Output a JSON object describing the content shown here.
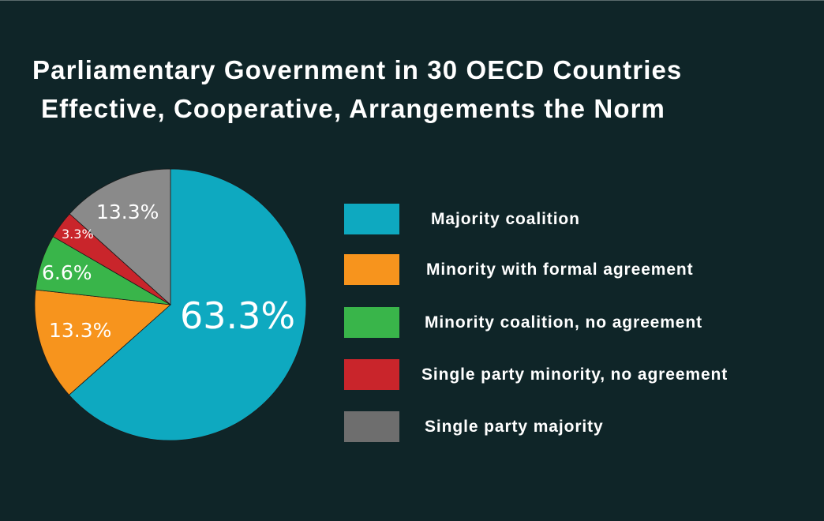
{
  "title": {
    "line1": "Parliamentary Government in 30 OECD Countries",
    "line2": "Effective, Cooperative, Arrangements the Norm"
  },
  "legend": {
    "items": [
      {
        "label": "Majority coalition",
        "color": "#0ea9c0"
      },
      {
        "label": "Minority with formal agreement",
        "color": "#f7941d"
      },
      {
        "label": "Minority coalition, no agreement",
        "color": "#39b54a"
      },
      {
        "label": "Single party minority, no agreement",
        "color": "#c9252b"
      },
      {
        "label": "Single party majority",
        "color": "#6e6e6e"
      }
    ]
  },
  "chart_data": {
    "type": "pie",
    "title": "Parliamentary Government in 30 OECD Countries",
    "subtitle": "Effective, Cooperative, Arrangements the Norm",
    "categories": [
      "Majority coalition",
      "Minority with formal agreement",
      "Minority coalition, no agreement",
      "Single party minority, no agreement",
      "Single party majority"
    ],
    "values": [
      63.3,
      13.3,
      6.6,
      3.3,
      13.3
    ],
    "labels": [
      "63.3%",
      "13.3%",
      "6.6%",
      "3.3%",
      "13.3%"
    ],
    "colors": [
      "#0ea9c0",
      "#f7941d",
      "#39b54a",
      "#c9252b",
      "#8a8a8a"
    ],
    "start_angle": "12 o'clock, clockwise",
    "legend_position": "right",
    "unit": "%"
  }
}
